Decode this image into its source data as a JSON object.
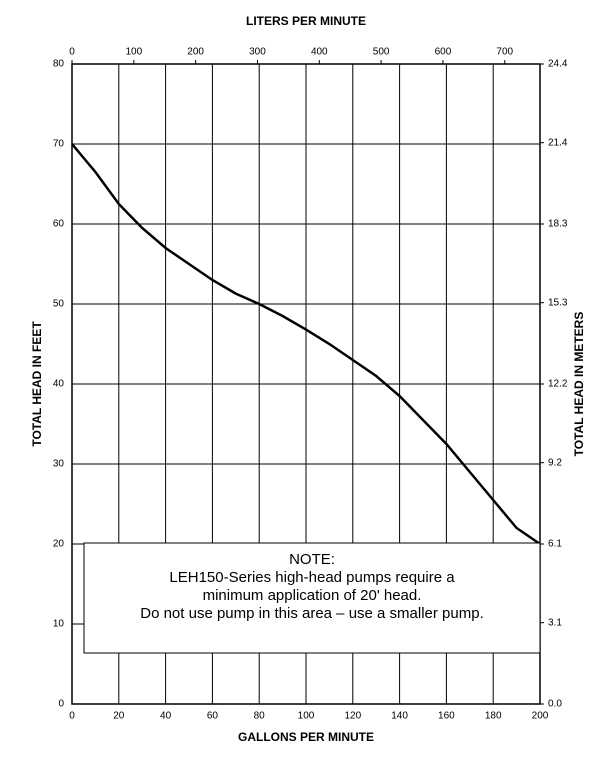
{
  "chart_data": {
    "type": "line",
    "x_label": "GALLONS PER MINUTE",
    "x2_label": "LITERS PER MINUTE",
    "y_label": "TOTAL HEAD IN FEET",
    "y2_label": "TOTAL HEAD IN METERS",
    "x": [
      0,
      10,
      20,
      30,
      40,
      50,
      60,
      70,
      80,
      90,
      100,
      110,
      120,
      130,
      140,
      150,
      160,
      170,
      180,
      190,
      200
    ],
    "series": [
      {
        "color": "#000000",
        "values": [
          70,
          66.5,
          62.5,
          59.5,
          57,
          55,
          53,
          51.3,
          50,
          48.5,
          46.8,
          45,
          43,
          41,
          38.5,
          35.5,
          32.5,
          29,
          25.5,
          22,
          20
        ]
      }
    ],
    "xlim": [
      0,
      200
    ],
    "xticks": [
      0,
      20,
      40,
      60,
      80,
      100,
      120,
      140,
      160,
      180,
      200
    ],
    "x2lim": [
      0,
      757
    ],
    "x2ticks": [
      0,
      100,
      200,
      300,
      400,
      500,
      600,
      700
    ],
    "ylim": [
      0,
      80
    ],
    "yticks": [
      0,
      10,
      20,
      30,
      40,
      50,
      60,
      70,
      80
    ],
    "y2lim": [
      0,
      24.4
    ],
    "y2ticks": [
      {
        "value": 0,
        "label": "0.0"
      },
      3.1,
      6.1,
      9.2,
      12.2,
      15.3,
      18.3,
      21.4,
      24.4
    ],
    "grid": true,
    "note": [
      "NOTE:",
      "LEH150-Series high-head pumps require a",
      "minimum application of 20' head.",
      "Do not use pump in this area – use a smaller pump."
    ]
  }
}
